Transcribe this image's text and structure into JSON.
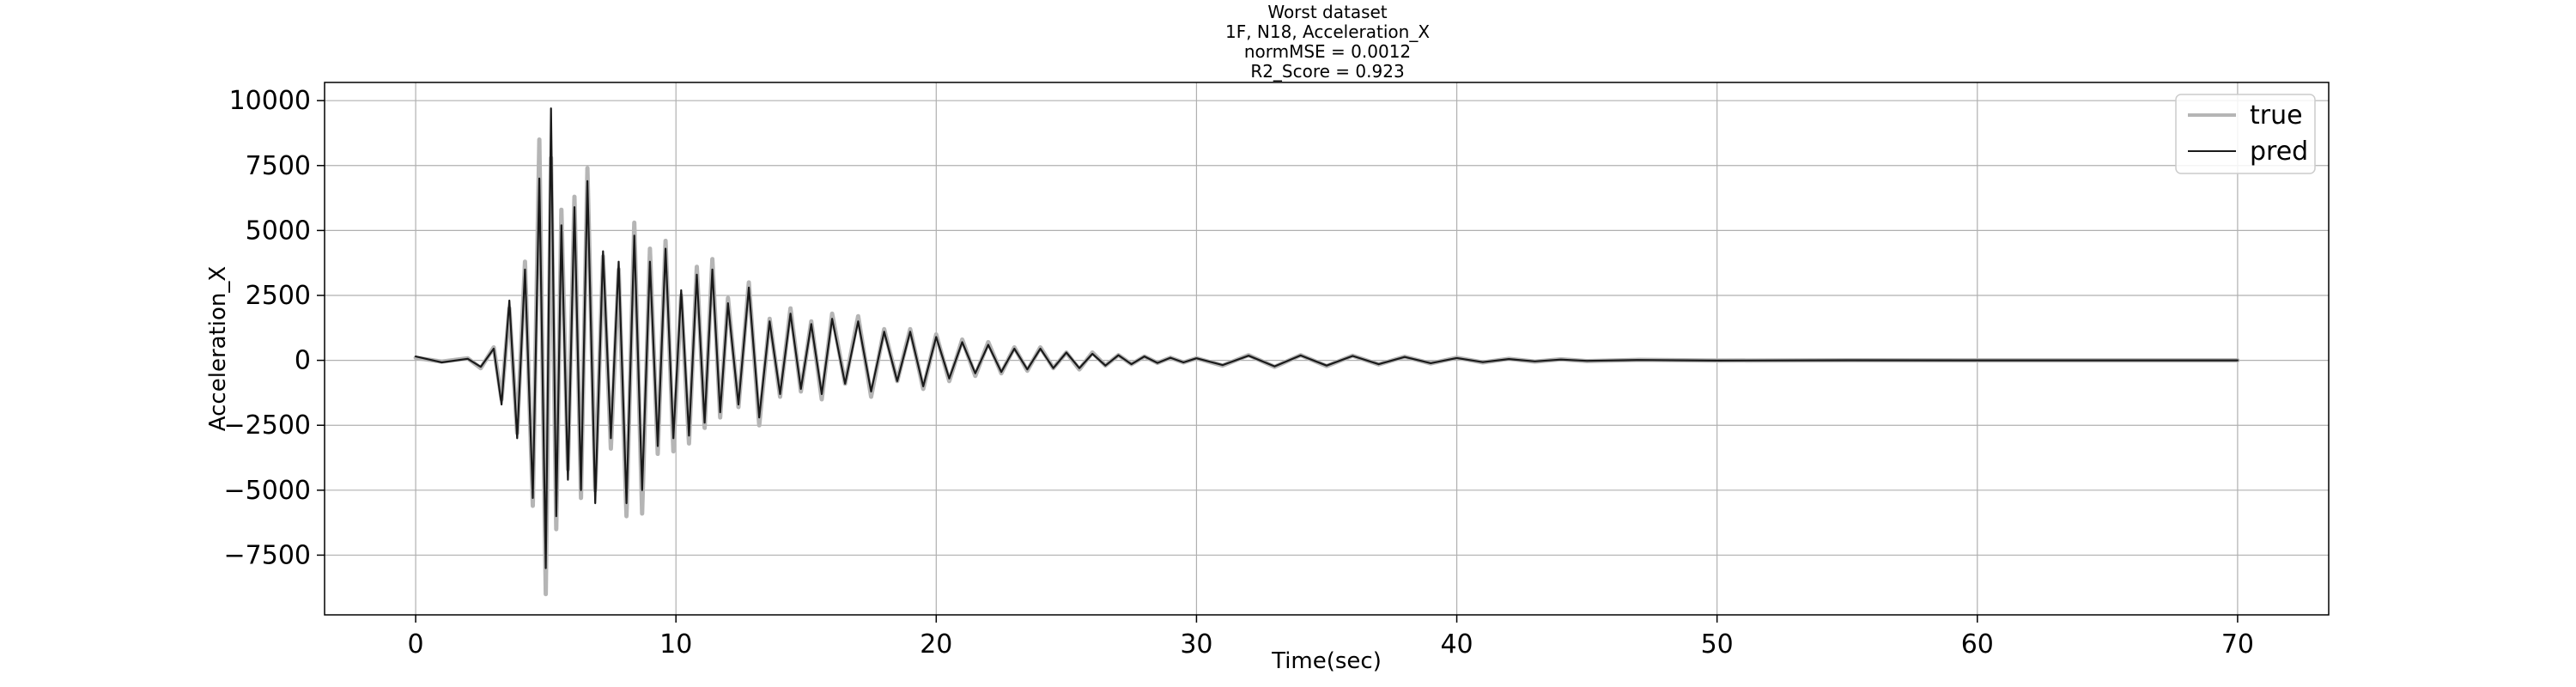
{
  "chart_data": {
    "type": "line",
    "title": [
      "Worst dataset",
      "1F, N18, Acceleration_X",
      "normMSE = 0.0012",
      "R2_Score = 0.923"
    ],
    "xlabel": "Time(sec)",
    "ylabel": "Acceleration_X",
    "xlim": [
      -3.5,
      73.5
    ],
    "ylim": [
      -9800,
      10700
    ],
    "xticks": [
      0,
      10,
      20,
      30,
      40,
      50,
      60,
      70
    ],
    "yticks": [
      -7500,
      -5000,
      -2500,
      0,
      2500,
      5000,
      7500,
      10000
    ],
    "xtick_labels": [
      "0",
      "10",
      "20",
      "30",
      "40",
      "50",
      "60",
      "70"
    ],
    "ytick_labels": [
      "−7500",
      "−5000",
      "−2500",
      "0",
      "2500",
      "5000",
      "7500",
      "10000"
    ],
    "grid": true,
    "legend_position": "top-right",
    "series": [
      {
        "name": "true",
        "color": "#b5b5b5",
        "x": [
          0,
          1,
          2,
          2.5,
          3,
          3.3,
          3.6,
          3.9,
          4.2,
          4.5,
          4.75,
          5.0,
          5.2,
          5.4,
          5.6,
          5.85,
          6.1,
          6.35,
          6.6,
          6.9,
          7.2,
          7.5,
          7.8,
          8.1,
          8.4,
          8.7,
          9.0,
          9.3,
          9.6,
          9.9,
          10.2,
          10.5,
          10.8,
          11.1,
          11.4,
          11.7,
          12.0,
          12.4,
          12.8,
          13.2,
          13.6,
          14.0,
          14.4,
          14.8,
          15.2,
          15.6,
          16.0,
          16.5,
          17.0,
          17.5,
          18.0,
          18.5,
          19.0,
          19.5,
          20.0,
          20.5,
          21.0,
          21.5,
          22.0,
          22.5,
          23.0,
          23.5,
          24.0,
          24.5,
          25.0,
          25.5,
          26.0,
          26.5,
          27.0,
          27.5,
          28.0,
          28.5,
          29.0,
          29.5,
          30.0,
          31.0,
          32.0,
          33.0,
          34.0,
          35.0,
          36.0,
          37.0,
          38.0,
          39.0,
          40.0,
          41.0,
          42.0,
          43.0,
          44.0,
          45.0,
          47.0,
          50.0,
          55.0,
          60.0,
          65.0,
          70.0
        ],
        "values": [
          100,
          -50,
          80,
          -300,
          500,
          -1500,
          2000,
          -2800,
          3800,
          -5600,
          8500,
          -9000,
          7800,
          -6500,
          5800,
          -4200,
          6300,
          -5300,
          7400,
          -5000,
          4000,
          -3400,
          3500,
          -6000,
          5300,
          -5900,
          4300,
          -3600,
          4600,
          -3500,
          2500,
          -3200,
          3600,
          -2600,
          3900,
          -2200,
          2400,
          -1800,
          3000,
          -2500,
          1600,
          -1400,
          2000,
          -1200,
          1500,
          -1500,
          1800,
          -900,
          1700,
          -1400,
          1200,
          -800,
          1200,
          -1100,
          1000,
          -800,
          800,
          -600,
          700,
          -500,
          500,
          -400,
          500,
          -300,
          300,
          -350,
          300,
          -200,
          200,
          -150,
          150,
          -100,
          100,
          -80,
          80,
          -200,
          200,
          -250,
          200,
          -220,
          180,
          -160,
          140,
          -120,
          100,
          -80,
          60,
          -50,
          40,
          -30,
          20,
          -10,
          5,
          0,
          0,
          0
        ]
      },
      {
        "name": "pred",
        "color": "#1a1a1a",
        "x": [
          0,
          1,
          2,
          2.5,
          3,
          3.3,
          3.6,
          3.9,
          4.2,
          4.5,
          4.75,
          5.0,
          5.2,
          5.4,
          5.6,
          5.85,
          6.1,
          6.35,
          6.6,
          6.9,
          7.2,
          7.5,
          7.8,
          8.1,
          8.4,
          8.7,
          9.0,
          9.3,
          9.6,
          9.9,
          10.2,
          10.5,
          10.8,
          11.1,
          11.4,
          11.7,
          12.0,
          12.4,
          12.8,
          13.2,
          13.6,
          14.0,
          14.4,
          14.8,
          15.2,
          15.6,
          16.0,
          16.5,
          17.0,
          17.5,
          18.0,
          18.5,
          19.0,
          19.5,
          20.0,
          20.5,
          21.0,
          21.5,
          22.0,
          22.5,
          23.0,
          23.5,
          24.0,
          24.5,
          25.0,
          25.5,
          26.0,
          26.5,
          27.0,
          27.5,
          28.0,
          28.5,
          29.0,
          29.5,
          30.0,
          31.0,
          32.0,
          33.0,
          34.0,
          35.0,
          36.0,
          37.0,
          38.0,
          39.0,
          40.0,
          41.0,
          42.0,
          43.0,
          44.0,
          45.0,
          47.0,
          50.0,
          55.0,
          60.0,
          65.0,
          70.0
        ],
        "values": [
          150,
          -80,
          60,
          -250,
          450,
          -1700,
          2300,
          -3000,
          3500,
          -5300,
          7000,
          -8000,
          9700,
          -6000,
          5200,
          -4600,
          5900,
          -5000,
          6900,
          -5500,
          4200,
          -3000,
          3800,
          -5500,
          4800,
          -5000,
          3800,
          -3300,
          4300,
          -3000,
          2700,
          -2900,
          3300,
          -2400,
          3500,
          -2000,
          2200,
          -1700,
          2800,
          -2200,
          1500,
          -1300,
          1800,
          -1100,
          1400,
          -1300,
          1600,
          -900,
          1500,
          -1200,
          1100,
          -800,
          1100,
          -1000,
          900,
          -700,
          700,
          -500,
          600,
          -450,
          450,
          -350,
          450,
          -300,
          300,
          -300,
          250,
          -200,
          200,
          -150,
          150,
          -100,
          100,
          -80,
          80,
          -180,
          180,
          -230,
          190,
          -200,
          170,
          -150,
          130,
          -110,
          90,
          -70,
          50,
          -40,
          30,
          -20,
          15,
          -8,
          4,
          0,
          0,
          0
        ]
      }
    ]
  }
}
